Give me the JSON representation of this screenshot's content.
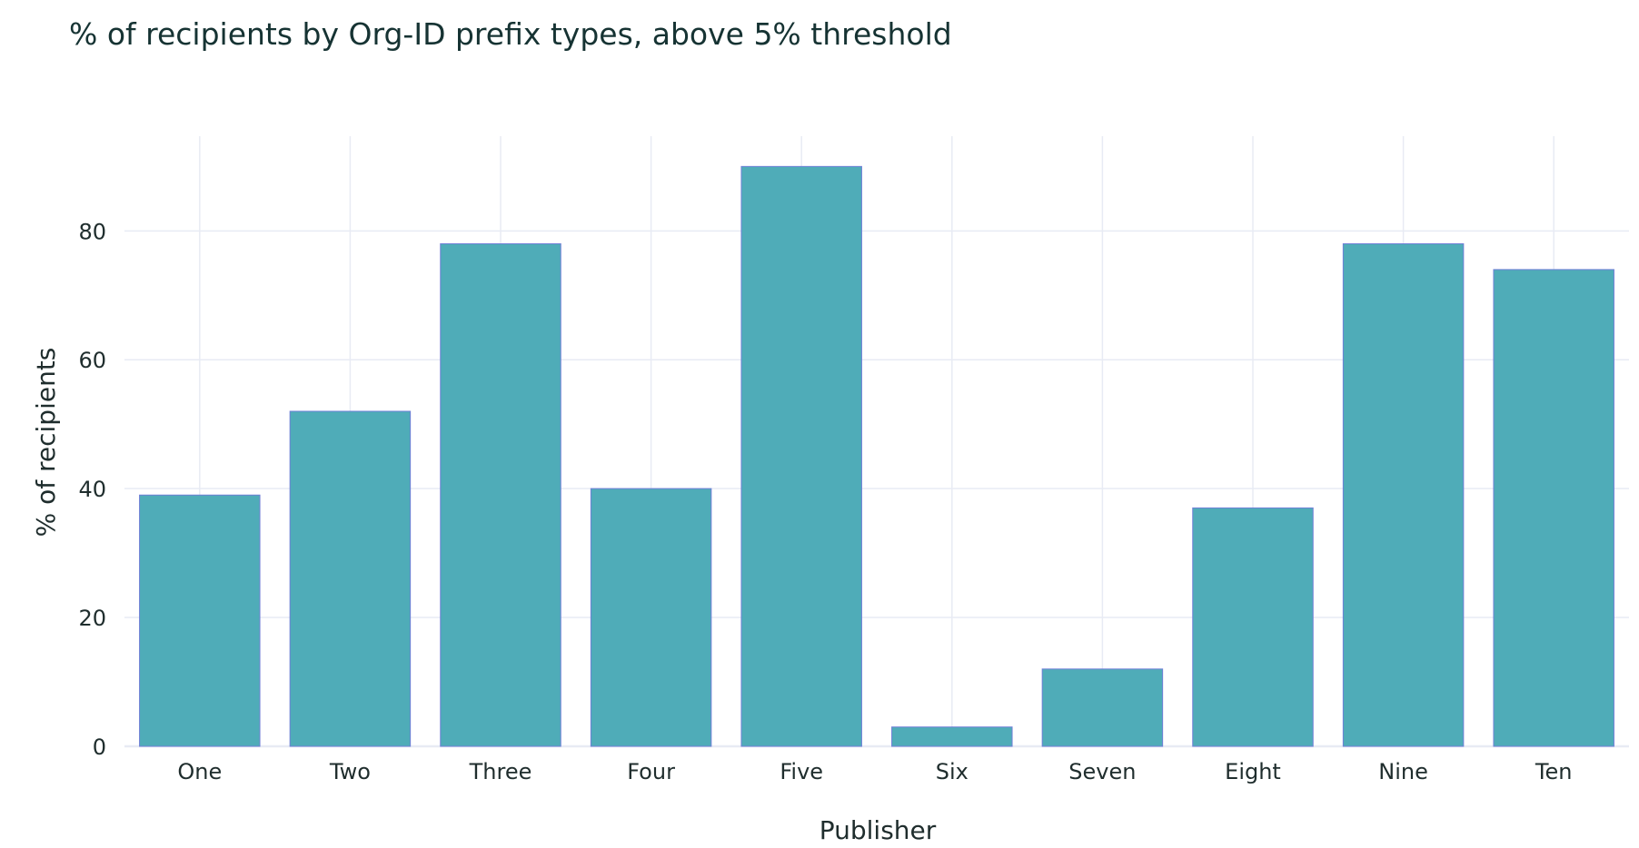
{
  "chart_data": {
    "type": "bar",
    "title": "% of recipients by Org-ID prefix types, above 5% threshold",
    "xlabel": "Publisher",
    "ylabel": "% of recipients",
    "categories": [
      "One",
      "Two",
      "Three",
      "Four",
      "Five",
      "Six",
      "Seven",
      "Eight",
      "Nine",
      "Ten"
    ],
    "values": [
      39,
      52,
      78,
      40,
      90,
      3,
      12,
      37,
      78,
      74
    ],
    "ylim": [
      0,
      94.7
    ],
    "yticks": [
      0,
      20,
      40,
      60,
      80
    ],
    "grid": true,
    "legend": "none",
    "colors": {
      "bar": "#4facb8",
      "bar_outline": "#6f7fd6",
      "grid": "#e8ebf4",
      "axis_text": "#1f2d2d",
      "title": "#163333"
    }
  }
}
